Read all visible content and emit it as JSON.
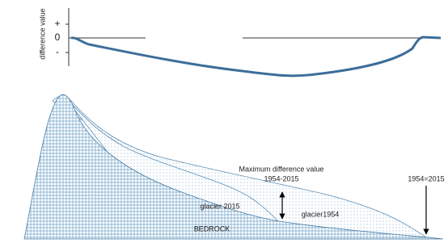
{
  "axis": {
    "label": "difference value",
    "ticks": [
      "+",
      "0",
      "-"
    ]
  },
  "annotations": {
    "max_title": "Maximum difference value",
    "max_period": "1954-2015",
    "equal": "1954=2015"
  },
  "labels": {
    "glacier_2015": "glacier 2015",
    "glacier_1954": "glacier1954",
    "bedrock": "BEDROCK"
  }
}
